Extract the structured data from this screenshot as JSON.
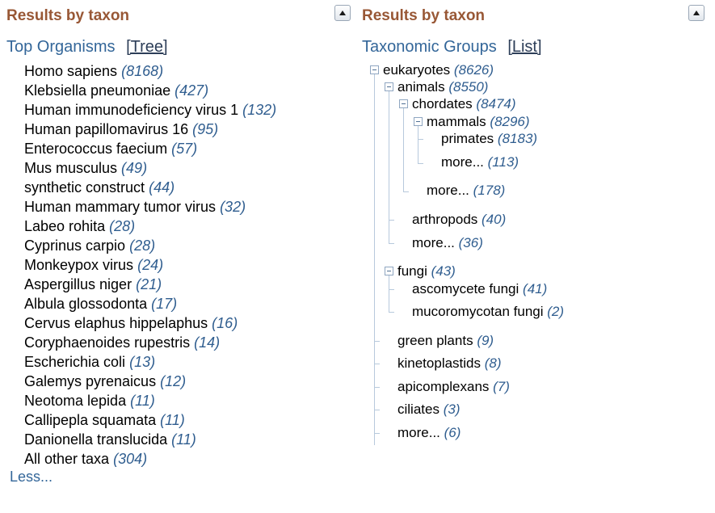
{
  "left": {
    "title": "Results by taxon",
    "heading": "Top Organisms",
    "toggle_link": "[Tree]",
    "organisms": [
      {
        "name": "Homo sapiens",
        "count": "(8168)"
      },
      {
        "name": "Klebsiella pneumoniae",
        "count": "(427)"
      },
      {
        "name": "Human immunodeficiency virus 1",
        "count": "(132)"
      },
      {
        "name": "Human papillomavirus 16",
        "count": "(95)"
      },
      {
        "name": "Enterococcus faecium",
        "count": "(57)"
      },
      {
        "name": "Mus musculus",
        "count": "(49)"
      },
      {
        "name": "synthetic construct",
        "count": "(44)"
      },
      {
        "name": "Human mammary tumor virus",
        "count": "(32)"
      },
      {
        "name": "Labeo rohita",
        "count": "(28)"
      },
      {
        "name": "Cyprinus carpio",
        "count": "(28)"
      },
      {
        "name": "Monkeypox virus",
        "count": "(24)"
      },
      {
        "name": "Aspergillus niger",
        "count": "(21)"
      },
      {
        "name": "Albula glossodonta",
        "count": "(17)"
      },
      {
        "name": "Cervus elaphus hippelaphus",
        "count": "(16)"
      },
      {
        "name": "Coryphaenoides rupestris",
        "count": "(14)"
      },
      {
        "name": "Escherichia coli",
        "count": "(13)"
      },
      {
        "name": "Galemys pyrenaicus",
        "count": "(12)"
      },
      {
        "name": "Neotoma lepida",
        "count": "(11)"
      },
      {
        "name": "Callipepla squamata",
        "count": "(11)"
      },
      {
        "name": "Danionella translucida",
        "count": "(11)"
      },
      {
        "name": "All other taxa",
        "count": "(304)"
      }
    ],
    "less_link": "Less..."
  },
  "right": {
    "title": "Results by taxon",
    "heading": "Taxonomic Groups",
    "toggle_link": "[List]",
    "tree": {
      "eukaryotes": {
        "name": "eukaryotes",
        "count": "(8626)"
      },
      "animals": {
        "name": "animals",
        "count": "(8550)"
      },
      "chordates": {
        "name": "chordates",
        "count": "(8474)"
      },
      "mammals": {
        "name": "mammals",
        "count": "(8296)"
      },
      "primates": {
        "name": "primates",
        "count": "(8183)"
      },
      "mammals_more": {
        "name": "more...",
        "count": "(113)"
      },
      "chordates_more": {
        "name": "more...",
        "count": "(178)"
      },
      "arthropods": {
        "name": "arthropods",
        "count": "(40)"
      },
      "animals_more": {
        "name": "more...",
        "count": "(36)"
      },
      "fungi": {
        "name": "fungi",
        "count": "(43)"
      },
      "ascomycete": {
        "name": "ascomycete fungi",
        "count": "(41)"
      },
      "mucoromycotan": {
        "name": "mucoromycotan fungi",
        "count": "(2)"
      },
      "green_plants": {
        "name": "green plants",
        "count": "(9)"
      },
      "kinetoplastids": {
        "name": "kinetoplastids",
        "count": "(8)"
      },
      "apicomplexans": {
        "name": "apicomplexans",
        "count": "(7)"
      },
      "ciliates": {
        "name": "ciliates",
        "count": "(3)"
      },
      "euk_more": {
        "name": "more...",
        "count": "(6)"
      }
    }
  },
  "colors": {
    "title": "#985735",
    "link": "#336699",
    "count": "#2f5d8f",
    "tree_line": "#b7c9dc"
  }
}
